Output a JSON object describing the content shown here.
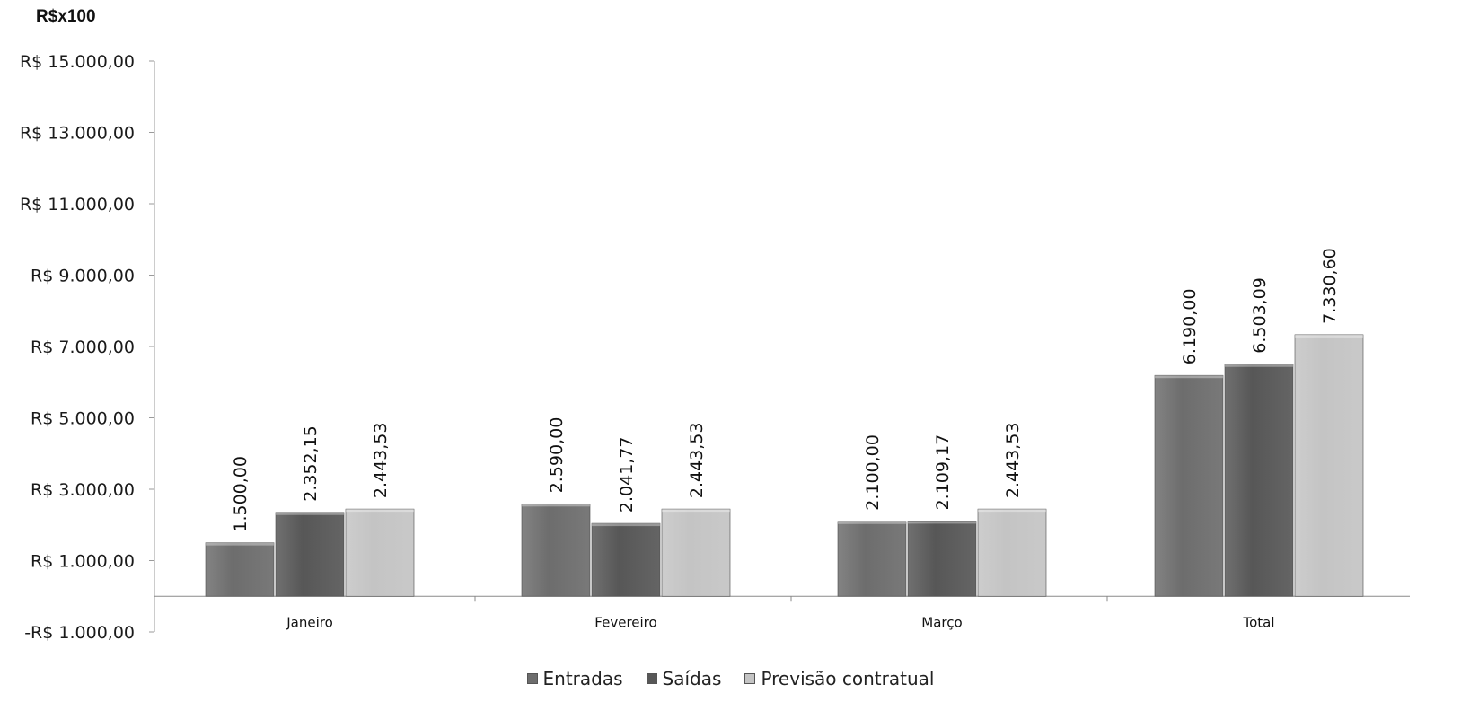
{
  "chart_data": {
    "type": "bar",
    "unit_label": "R$x100",
    "categories": [
      "Janeiro",
      "Fevereiro",
      "Março",
      "Total"
    ],
    "series": [
      {
        "name": "Entradas",
        "values": [
          1500.0,
          2590.0,
          2100.0,
          6190.0
        ],
        "labels": [
          "1.500,00",
          "2.590,00",
          "2.100,00",
          "6.190,00"
        ],
        "color": "#6d6d6d"
      },
      {
        "name": "Saídas",
        "values": [
          2352.15,
          2041.77,
          2109.17,
          6503.09
        ],
        "labels": [
          "2.352,15",
          "2.041,77",
          "2.109,17",
          "6.503,09"
        ],
        "color": "#575757"
      },
      {
        "name": "Previsão contratual",
        "values": [
          2443.53,
          2443.53,
          2443.53,
          7330.6
        ],
        "labels": [
          "2.443,53",
          "2.443,53",
          "2.443,53",
          "7.330,60"
        ],
        "color": "#c4c4c4"
      }
    ],
    "y_ticks": [
      15000,
      13000,
      11000,
      9000,
      7000,
      5000,
      3000,
      1000,
      -1000
    ],
    "y_tick_labels": [
      "R$ 15.000,00",
      "R$ 13.000,00",
      "R$ 11.000,00",
      "R$ 9.000,00",
      "R$ 7.000,00",
      "R$ 5.000,00",
      "R$ 3.000,00",
      "R$ 1.000,00",
      "-R$ 1.000,00"
    ],
    "ylim": [
      -1000,
      15000
    ],
    "baseline": 0,
    "grid": false,
    "legend_position": "bottom",
    "data_label_orientation": "vertical"
  }
}
